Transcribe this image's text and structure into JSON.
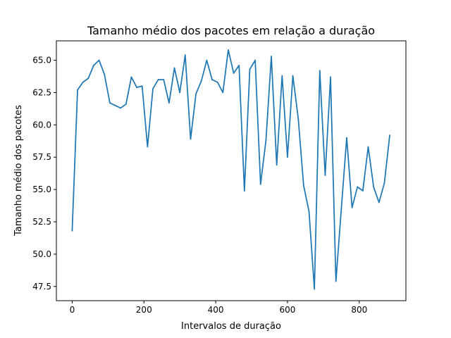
{
  "chart_data": {
    "type": "line",
    "title": "Tamanho médio dos pacotes em relação a duração",
    "xlabel": "Intervalos de duração",
    "ylabel": "Tamanho médio dos pacotes",
    "xlim": [
      -44,
      930
    ],
    "ylim": [
      46.4,
      66.5
    ],
    "xticks": [
      0,
      200,
      400,
      600,
      800
    ],
    "xtick_labels": [
      "0",
      "200",
      "400",
      "600",
      "800"
    ],
    "yticks": [
      47.5,
      50.0,
      52.5,
      55.0,
      57.5,
      60.0,
      62.5,
      65.0
    ],
    "ytick_labels": [
      "47.5",
      "50.0",
      "52.5",
      "55.0",
      "57.5",
      "60.0",
      "62.5",
      "65.0"
    ],
    "grid": false,
    "series": [
      {
        "color": "#1f77b4",
        "x": [
          0,
          15,
          30,
          45,
          60,
          75,
          90,
          105,
          120,
          135,
          150,
          165,
          180,
          195,
          210,
          225,
          240,
          255,
          270,
          285,
          300,
          315,
          330,
          345,
          360,
          375,
          390,
          405,
          420,
          435,
          450,
          465,
          480,
          495,
          510,
          525,
          540,
          555,
          570,
          585,
          600,
          615,
          630,
          645,
          660,
          675,
          690,
          705,
          720,
          735,
          750,
          765,
          780,
          795,
          810,
          825,
          840,
          855,
          870,
          885
        ],
        "y": [
          51.8,
          62.7,
          63.3,
          63.6,
          64.6,
          65.0,
          63.9,
          61.7,
          61.5,
          61.3,
          61.6,
          63.7,
          62.9,
          63.0,
          58.3,
          62.8,
          63.5,
          63.5,
          61.7,
          64.4,
          62.5,
          65.4,
          58.9,
          62.4,
          63.4,
          65.0,
          63.5,
          63.3,
          62.5,
          65.8,
          64.0,
          64.6,
          54.9,
          64.3,
          65.0,
          55.4,
          58.8,
          65.3,
          56.9,
          63.8,
          57.5,
          63.8,
          60.5,
          55.3,
          53.3,
          47.3,
          64.2,
          56.1,
          63.7,
          47.9,
          53.5,
          59.0,
          53.6,
          55.2,
          54.9,
          58.3,
          55.2,
          54.0,
          55.5,
          59.2
        ]
      }
    ]
  }
}
